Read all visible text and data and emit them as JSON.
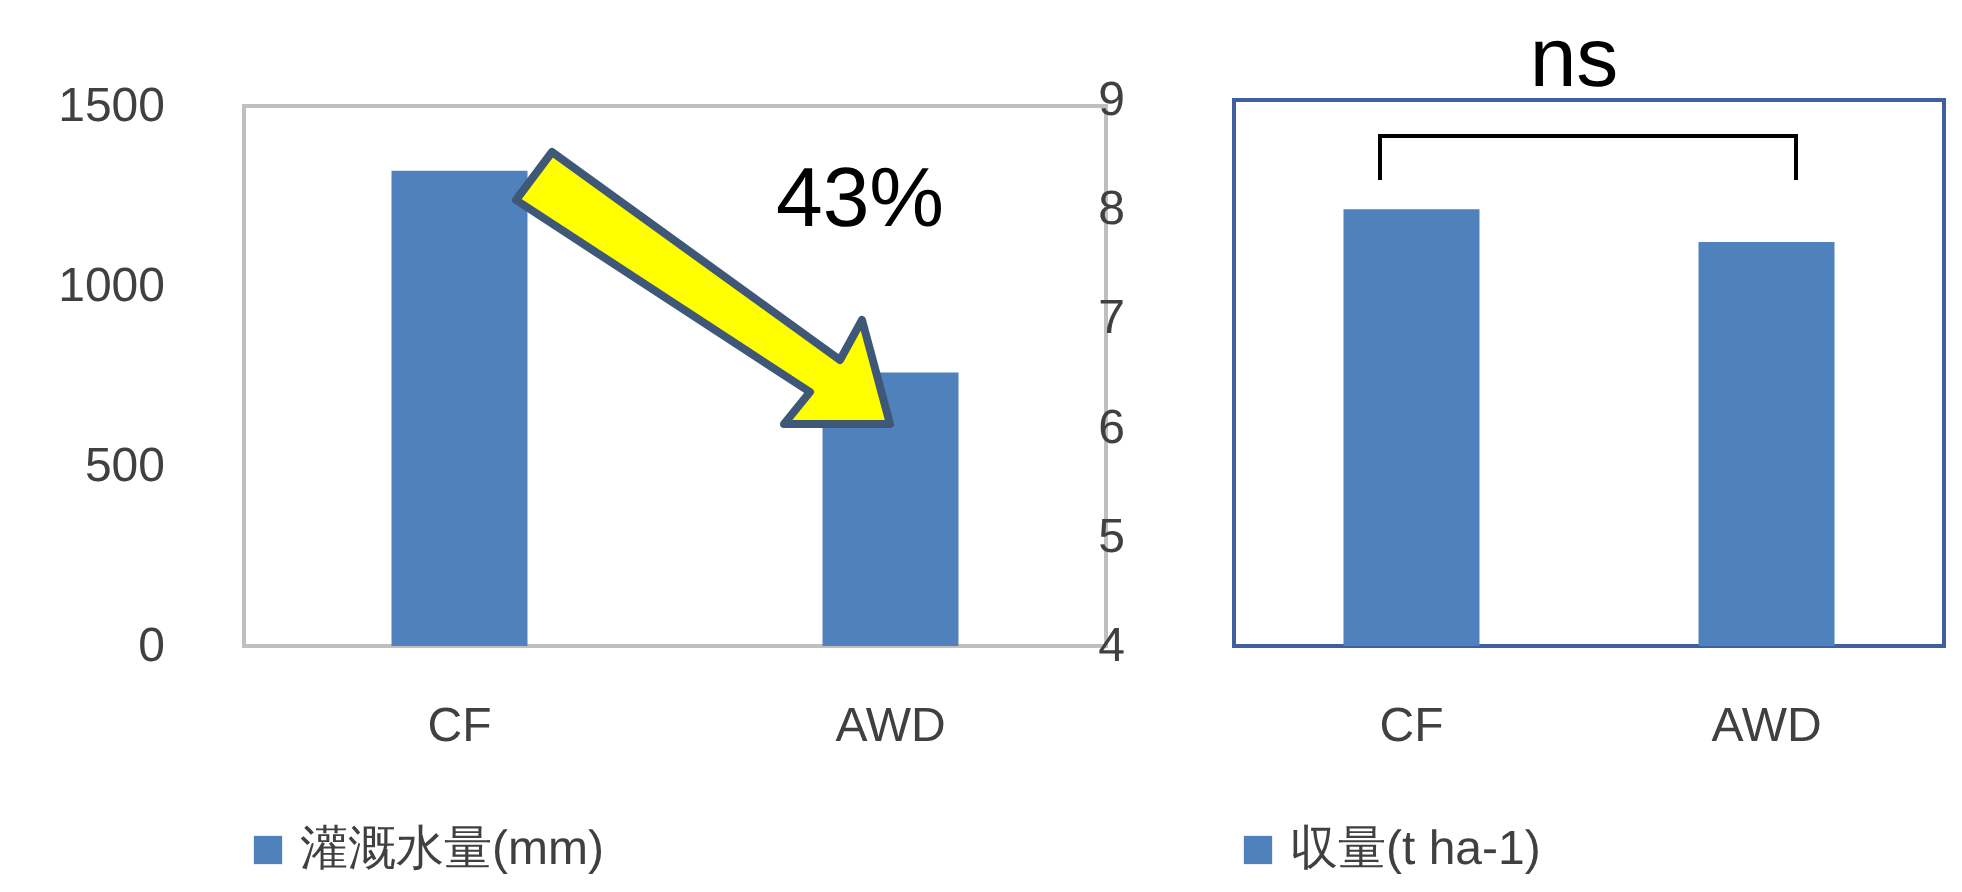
{
  "chart_data": [
    {
      "type": "bar",
      "categories": [
        "CF",
        "AWD"
      ],
      "series": [
        {
          "name": "灌溉水量(mm)",
          "color": "#4f81bd",
          "values": [
            1320,
            760
          ]
        }
      ],
      "ylim": [
        0,
        1500
      ],
      "yticks": [
        0,
        500,
        {
          "value": 1000,
          "label": "1000"
        },
        {
          "value": 1500,
          "label": "1500"
        }
      ],
      "grid": false,
      "legend": "bottom",
      "annotations": [
        "43%"
      ]
    },
    {
      "type": "bar",
      "categories": [
        "CF",
        "AWD"
      ],
      "series": [
        {
          "name": "収量(t ha-1)",
          "color": "#4f81bd",
          "values": [
            8.0,
            7.7
          ]
        }
      ],
      "ylim": [
        4,
        9
      ],
      "yticks": [
        4,
        5,
        6,
        7,
        8,
        9
      ],
      "grid": false,
      "legend": "bottom",
      "annotations": [
        "ns"
      ]
    }
  ]
}
